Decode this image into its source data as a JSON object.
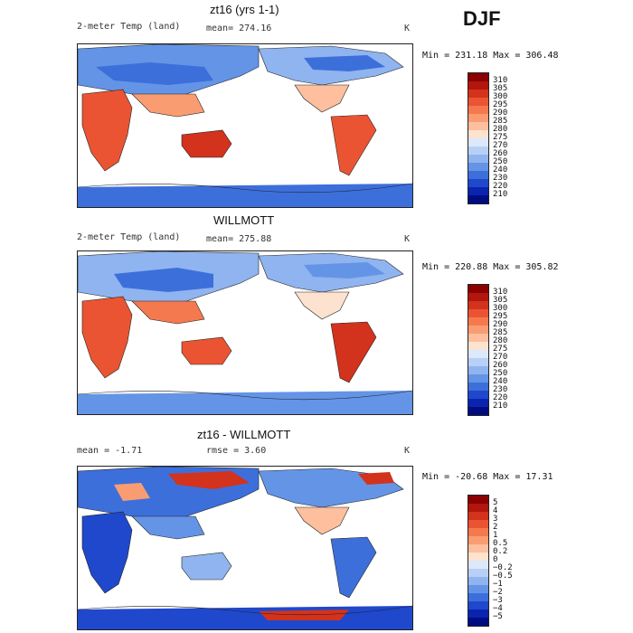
{
  "season": "DJF",
  "panels": [
    {
      "title": "zt16 (yrs 1-1)",
      "variable": "2-meter Temp (land)",
      "stat_left": "",
      "stat_mid": "mean= 274.16",
      "units": "K",
      "minmax": "Min = 231.18 Max = 306.48"
    },
    {
      "title": "WILLMOTT",
      "variable": "2-meter Temp (land)",
      "stat_left": "",
      "stat_mid": "mean= 275.88",
      "units": "K",
      "minmax": "Min = 220.88 Max = 305.82"
    },
    {
      "title": "zt16 - WILLMOTT",
      "variable": "",
      "stat_left": "mean =   -1.71",
      "stat_mid": "rmse =    3.60",
      "units": "K",
      "minmax": "Min = -20.68 Max =  17.31"
    }
  ],
  "chart_data": [
    {
      "type": "heatmap",
      "title": "zt16 (yrs 1-1)",
      "subtitle": "2-meter Temp (land)",
      "mean": 274.16,
      "units": "K",
      "min": 231.18,
      "max": 306.48,
      "colorbar_ticks": [
        "310",
        "305",
        "300",
        "295",
        "290",
        "285",
        "280",
        "275",
        "270",
        "260",
        "250",
        "240",
        "230",
        "220",
        "210"
      ],
      "colorbar_colors": [
        "#8b0000",
        "#b2160c",
        "#d3321c",
        "#eb5432",
        "#f5794e",
        "#fa9c72",
        "#fdbf9d",
        "#fde3cf",
        "#dce8fb",
        "#b8d0f6",
        "#8fb4ef",
        "#6494e6",
        "#3d6fdb",
        "#1f48cc",
        "#0a24b0",
        "#000d80"
      ]
    },
    {
      "type": "heatmap",
      "title": "WILLMOTT",
      "subtitle": "2-meter Temp (land)",
      "mean": 275.88,
      "units": "K",
      "min": 220.88,
      "max": 305.82,
      "colorbar_ticks": [
        "310",
        "305",
        "300",
        "295",
        "290",
        "285",
        "280",
        "275",
        "270",
        "260",
        "250",
        "240",
        "230",
        "220",
        "210"
      ],
      "colorbar_colors": [
        "#8b0000",
        "#b2160c",
        "#d3321c",
        "#eb5432",
        "#f5794e",
        "#fa9c72",
        "#fdbf9d",
        "#fde3cf",
        "#dce8fb",
        "#b8d0f6",
        "#8fb4ef",
        "#6494e6",
        "#3d6fdb",
        "#1f48cc",
        "#0a24b0",
        "#000d80"
      ]
    },
    {
      "type": "heatmap",
      "title": "zt16 - WILLMOTT",
      "mean": -1.71,
      "rmse": 3.6,
      "units": "K",
      "min": -20.68,
      "max": 17.31,
      "colorbar_ticks": [
        "5",
        "4",
        "3",
        "2",
        "1",
        "0.5",
        "0.2",
        "0",
        "−0.2",
        "−0.5",
        "−1",
        "−2",
        "−3",
        "−4",
        "−5"
      ],
      "colorbar_colors": [
        "#8b0000",
        "#b2160c",
        "#d3321c",
        "#eb5432",
        "#f5794e",
        "#fa9c72",
        "#fdbf9d",
        "#fde3cf",
        "#dce8fb",
        "#b8d0f6",
        "#8fb4ef",
        "#6494e6",
        "#3d6fdb",
        "#1f48cc",
        "#0a24b0",
        "#000d80"
      ]
    }
  ]
}
